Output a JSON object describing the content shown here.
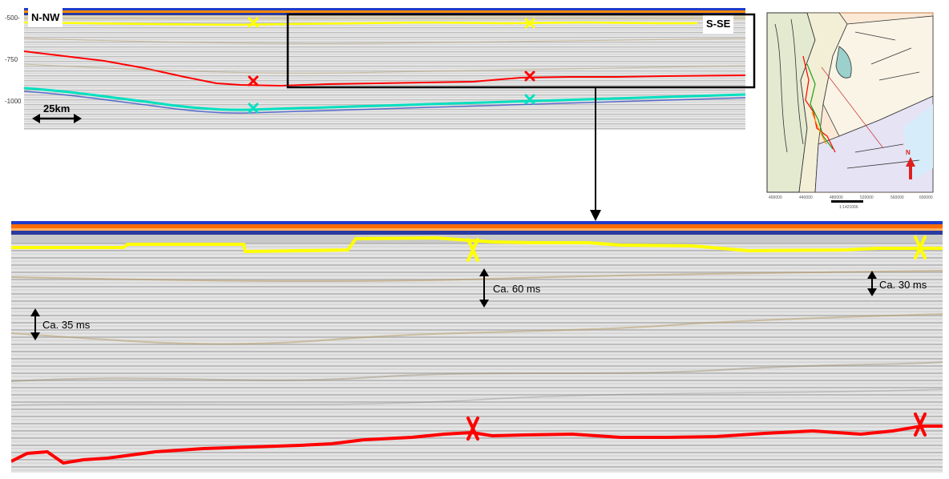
{
  "top_section": {
    "label_left": "N-NW",
    "label_right": "S-SE",
    "scale_label": "25km",
    "depth_ticks": [
      "-500-",
      "-750",
      "-1000"
    ]
  },
  "zoom_section": {
    "thickness_left": "Ca. 35 ms",
    "thickness_mid": "Ca. 60 ms",
    "thickness_right": "Ca. 30 ms"
  },
  "horizon_colors": {
    "upper": "#ffff00",
    "middle": "#ff0000",
    "lower": "#00e0c0",
    "seabed": "#1e3cc8"
  },
  "inset_map": {
    "north_label": "N",
    "x_ticks": [
      "400000",
      "440000",
      "480000",
      "520000",
      "560000",
      "600000"
    ],
    "scale_text": "1:1421066"
  }
}
